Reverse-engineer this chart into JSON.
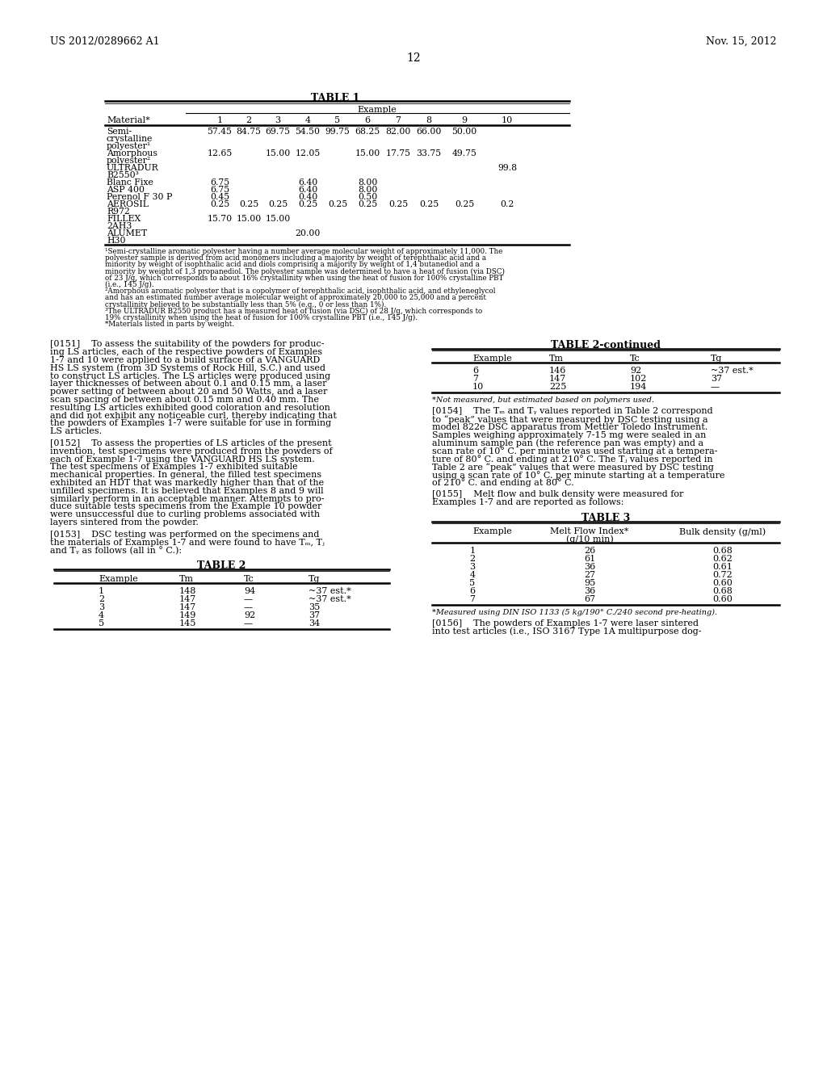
{
  "page_header_left": "US 2012/0289662 A1",
  "page_header_right": "Nov. 15, 2012",
  "page_number": "12",
  "background_color": "#ffffff",
  "table1_title": "TABLE 1",
  "table2_title": "TABLE 2",
  "table2c_title": "TABLE 2-continued",
  "table3_title": "TABLE 3",
  "t1_col_labels": [
    "1",
    "2",
    "3",
    "4",
    "5",
    "6",
    "7",
    "8",
    "9",
    "10"
  ],
  "t1_rows": [
    [
      "Semi-",
      "57.45",
      "84.75",
      "69.75",
      "54.50",
      "99.75",
      "68.25",
      "82.00",
      "66.00",
      "50.00",
      ""
    ],
    [
      "crystalline",
      "",
      "",
      "",
      "",
      "",
      "",
      "",
      "",
      "",
      ""
    ],
    [
      "polyester¹",
      "",
      "",
      "",
      "",
      "",
      "",
      "",
      "",
      "",
      ""
    ],
    [
      "Amorphous",
      "12.65",
      "",
      "15.00",
      "12.05",
      "",
      "15.00",
      "17.75",
      "33.75",
      "49.75",
      ""
    ],
    [
      "polyester²",
      "",
      "",
      "",
      "",
      "",
      "",
      "",
      "",
      "",
      ""
    ],
    [
      "ULTRADUR",
      "",
      "",
      "",
      "",
      "",
      "",
      "",
      "",
      "",
      "99.8"
    ],
    [
      "B2550³",
      "",
      "",
      "",
      "",
      "",
      "",
      "",
      "",
      "",
      ""
    ],
    [
      "Blanc Fixe",
      "6.75",
      "",
      "",
      "6.40",
      "",
      "8.00",
      "",
      "",
      "",
      ""
    ],
    [
      "ASP 400",
      "6.75",
      "",
      "",
      "6.40",
      "",
      "8.00",
      "",
      "",
      "",
      ""
    ],
    [
      "Perenol F 30 P",
      "0.45",
      "",
      "",
      "0.40",
      "",
      "0.50",
      "",
      "",
      "",
      ""
    ],
    [
      "AEROSIL",
      "0.25",
      "0.25",
      "0.25",
      "0.25",
      "0.25",
      "0.25",
      "0.25",
      "0.25",
      "0.25",
      "0.2"
    ],
    [
      "R972",
      "",
      "",
      "",
      "",
      "",
      "",
      "",
      "",
      "",
      ""
    ],
    [
      "FILLEX",
      "15.70",
      "15.00",
      "15.00",
      "",
      "",
      "",
      "",
      "",
      "",
      ""
    ],
    [
      "2AH3",
      "",
      "",
      "",
      "",
      "",
      "",
      "",
      "",
      "",
      ""
    ],
    [
      "ALUMET",
      "",
      "",
      "",
      "20.00",
      "",
      "",
      "",
      "",
      "",
      ""
    ],
    [
      "H30",
      "",
      "",
      "",
      "",
      "",
      "",
      "",
      "",
      "",
      ""
    ]
  ],
  "t1_footnotes": [
    "¹Semi-crystalline aromatic polyester having a number average molecular weight of approximately 11,000. The polyester sample is derived from acid monomers including a majority by weight of terephthalic acid and a",
    "minority by weight of isophthalic acid and diols comprising a majority by weight of 1,4 butanediol and a minority by weight of 1,3 propanediol. The polyester sample was determined to have a heat of fusion (via DSC)",
    "of 23 J/g, which corresponds to about 16% crystallinity when using the heat of fusion for 100% crystalline PBT (i.e., 145 J/g).",
    "²Amorphous aromatic polyester that is a copolymer of terephthalic acid, isophthalic acid, and ethyleneglycol and has an estimated number average molecular weight of approximately 20,000 to 25,000 and a percent",
    "crystallinity believed to be substantially less than 5% (e.g., 0 or less than 1%).",
    "³The ULTRADUR B2550 product has a measured heat of fusion (via DSC) of 28 J/g, which corresponds to 19% crystallinity when using the heat of fusion for 100% crystalline PBT (i.e., 145 J/g).",
    "*Materials listed in parts by weight."
  ],
  "p151_lines": [
    "[0151]    To assess the suitability of the powders for produc-",
    "ing LS articles, each of the respective powders of Examples",
    "1-7 and 10 were applied to a build surface of a VANGUARD",
    "HS LS system (from 3D Systems of Rock Hill, S.C.) and used",
    "to construct LS articles. The LS articles were produced using",
    "layer thicknesses of between about 0.1 and 0.15 mm, a laser",
    "power setting of between about 20 and 50 Watts, and a laser",
    "scan spacing of between about 0.15 mm and 0.40 mm. The",
    "resulting LS articles exhibited good coloration and resolution",
    "and did not exhibit any noticeable curl, thereby indicating that",
    "the powders of Examples 1-7 were suitable for use in forming",
    "LS articles."
  ],
  "p152_lines": [
    "[0152]    To assess the properties of LS articles of the present",
    "invention, test specimens were produced from the powders of",
    "each of Example 1-7 using the VANGUARD HS LS system.",
    "The test specimens of Examples 1-7 exhibited suitable",
    "mechanical properties. In general, the filled test specimens",
    "exhibited an HDT that was markedly higher than that of the",
    "unfilled specimens. It is believed that Examples 8 and 9 will",
    "similarly perform in an acceptable manner. Attempts to pro-",
    "duce suitable tests specimens from the Example 10 powder",
    "were unsuccessful due to curling problems associated with",
    "layers sintered from the powder."
  ],
  "p153_lines": [
    "[0153]    DSC testing was performed on the specimens and",
    "the materials of Examples 1-7 and were found to have Tₘ, Tⱼ",
    "and Tᵧ as follows (all in ° C.):"
  ],
  "t2_rows": [
    [
      "1",
      "148",
      "94",
      "~37 est.*"
    ],
    [
      "2",
      "147",
      "—",
      "~37 est.*"
    ],
    [
      "3",
      "147",
      "—",
      "35"
    ],
    [
      "4",
      "149",
      "92",
      "37"
    ],
    [
      "5",
      "145",
      "—",
      "34"
    ]
  ],
  "t2c_rows": [
    [
      "6",
      "146",
      "92",
      "~37 est.*"
    ],
    [
      "7",
      "147",
      "102",
      "37"
    ],
    [
      "10",
      "225",
      "194",
      "—"
    ]
  ],
  "t2c_footnote": "*Not measured, but estimated based on polymers used.",
  "p154_lines": [
    "[0154]    The Tₘ and Tᵧ values reported in Table 2 correspond",
    "to “peak” values that were measured by DSC testing using a",
    "model 822e DSC apparatus from Mettler Toledo Instrument.",
    "Samples weighing approximately 7-15 mg were sealed in an",
    "aluminum sample pan (the reference pan was empty) and a",
    "scan rate of 10° C. per minute was used starting at a tempera-",
    "ture of 80° C. and ending at 210° C. The Tⱼ values reported in",
    "Table 2 are “peak” values that were measured by DSC testing",
    "using a scan rate of 10° C. per minute starting at a temperature",
    "of 210° C. and ending at 80° C."
  ],
  "p155_lines": [
    "[0155]    Melt flow and bulk density were measured for",
    "Examples 1-7 and are reported as follows:"
  ],
  "t3_rows": [
    [
      "1",
      "26",
      "0.68"
    ],
    [
      "2",
      "61",
      "0.62"
    ],
    [
      "3",
      "36",
      "0.61"
    ],
    [
      "4",
      "27",
      "0.72"
    ],
    [
      "5",
      "95",
      "0.60"
    ],
    [
      "6",
      "36",
      "0.68"
    ],
    [
      "7",
      "67",
      "0.60"
    ]
  ],
  "t3_footnote": "*Measured using DIN ISO 1133 (5 kg/190° C./240 second pre-heating).",
  "p156_lines": [
    "[0156]    The powders of Examples 1-7 were laser sintered",
    "into test articles (i.e., ISO 3167 Type 1A multipurpose dog-"
  ]
}
